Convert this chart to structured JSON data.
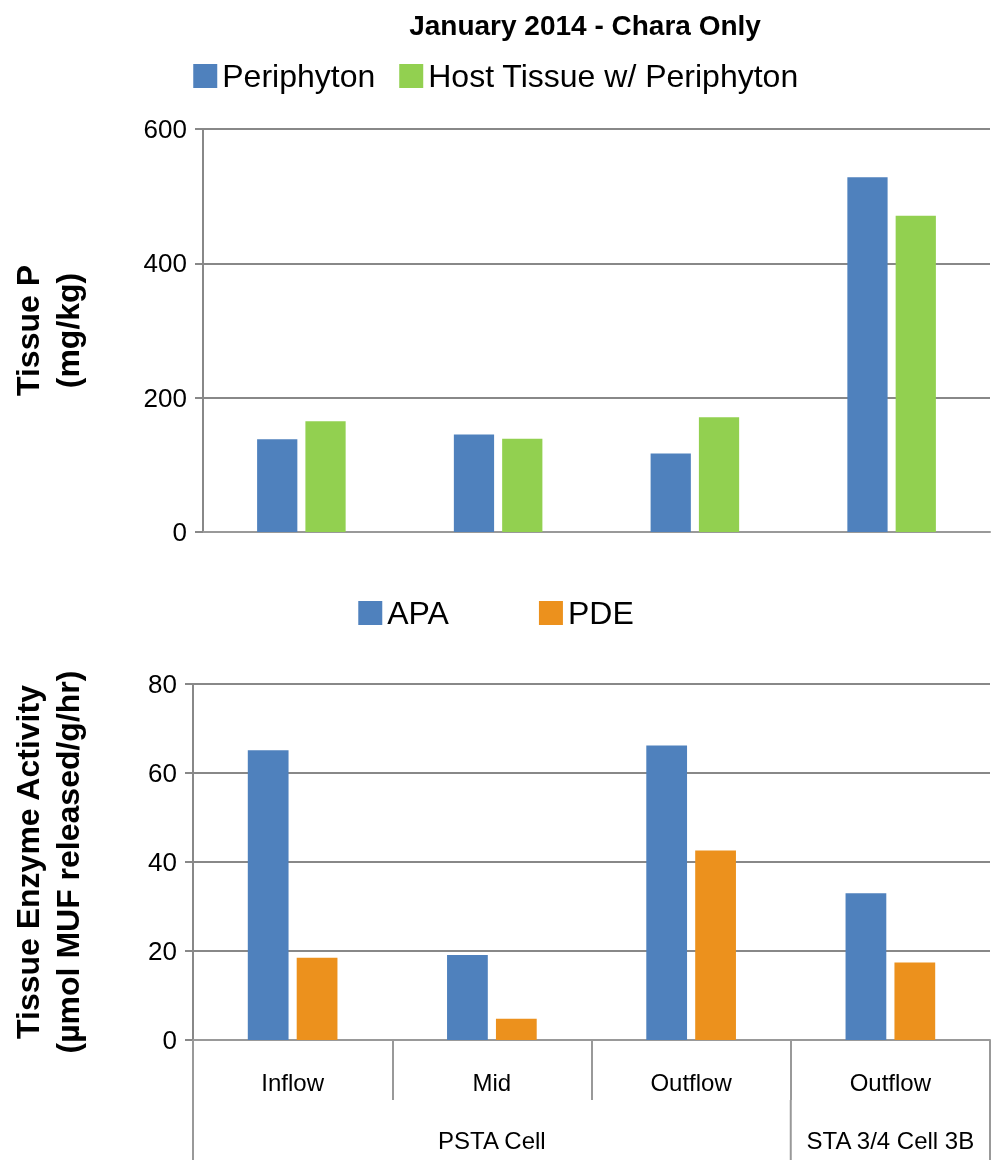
{
  "chart_data": [
    {
      "type": "bar",
      "title": "January 2014 - Chara Only",
      "ylabel": "Tissue P\n(mg/kg)",
      "categories": [
        null,
        null,
        null,
        null
      ],
      "series": [
        {
          "name": "Periphyton",
          "color": "#4f81bd",
          "values": [
            138,
            145,
            117,
            528
          ]
        },
        {
          "name": "Host Tissue w/ Periphyton",
          "color": "#92d050",
          "values": [
            165,
            139,
            171,
            471
          ]
        }
      ],
      "ylim": [
        0,
        600
      ],
      "yticks": [
        0,
        200,
        400,
        600
      ],
      "grid": "y",
      "legend": "top",
      "tick_labels": "y"
    },
    {
      "type": "bar",
      "ylabel": "Tissue Enzyme Activity\n(µmol MUF released/g/hr)",
      "categories": [
        "Inflow",
        "Mid",
        "Outflow",
        "Outflow"
      ],
      "series": [
        {
          "name": "APA",
          "color": "#4f81bd",
          "values": [
            65.1,
            19.1,
            66.2,
            33.0
          ]
        },
        {
          "name": "PDE",
          "color": "#ec911d",
          "values": [
            18.5,
            4.8,
            42.6,
            17.4
          ]
        }
      ],
      "ylim": [
        0,
        80
      ],
      "yticks": [
        0,
        20,
        40,
        60,
        80
      ],
      "grid": "y",
      "legend": "top",
      "annotations": [
        "PSTA Cell",
        "STA 3/4 Cell 3B"
      ]
    }
  ]
}
